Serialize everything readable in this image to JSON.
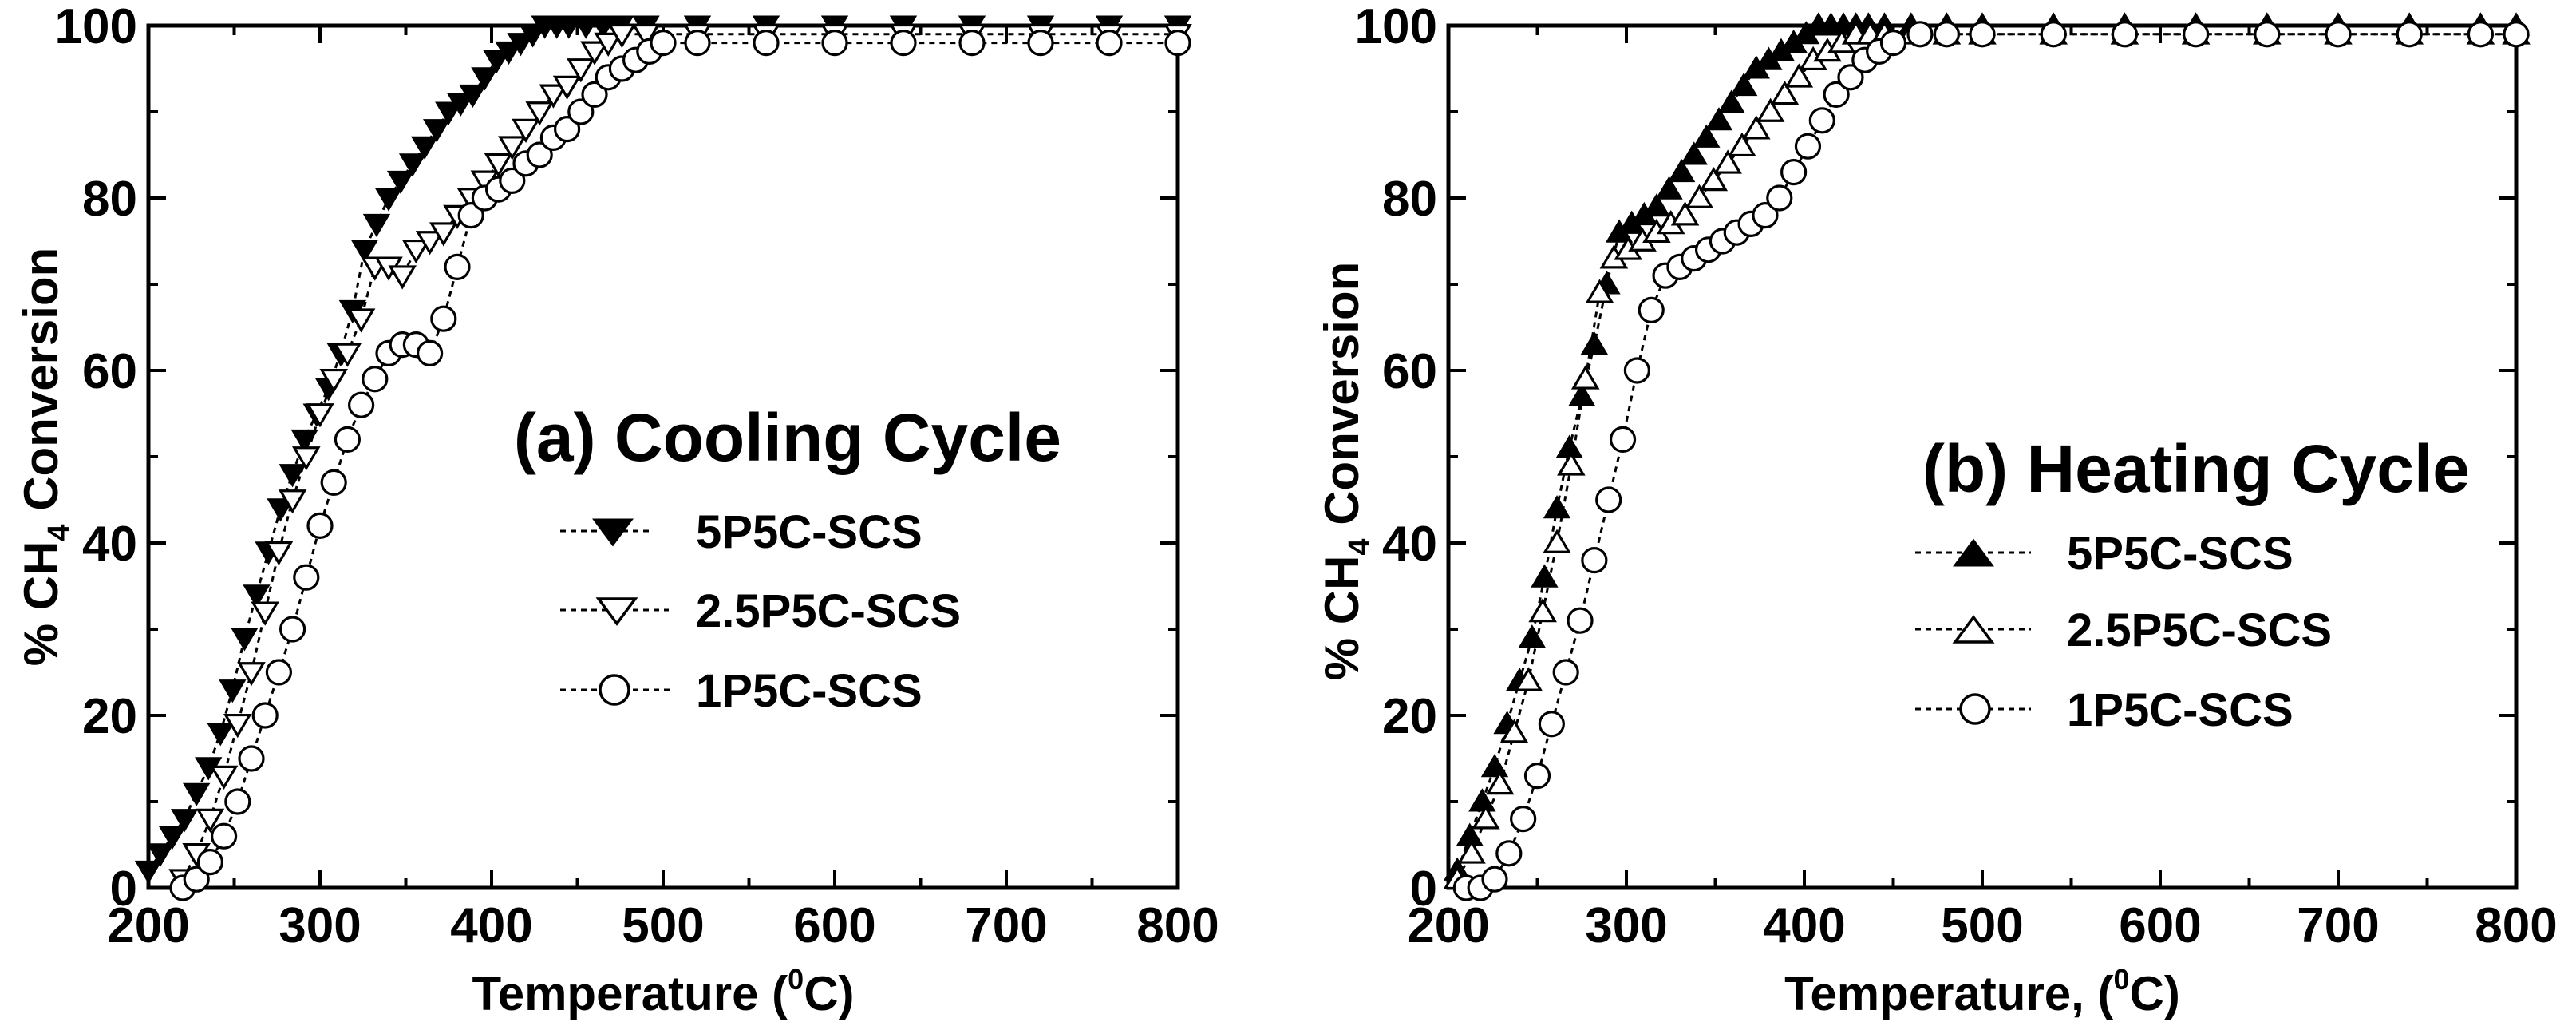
{
  "chart_data": [
    {
      "type": "scatter",
      "title": "",
      "annotation": "(a) Cooling Cycle",
      "xlabel": "Temperature (",
      "xlabel_sup": "0",
      "xlabel_end": "C)",
      "ylabel_prefix": "% CH",
      "ylabel_sub": "4",
      "ylabel_suffix": " Conversion",
      "xlim": [
        200,
        800
      ],
      "ylim": [
        0,
        100
      ],
      "xticks": [
        200,
        300,
        400,
        500,
        600,
        700,
        800
      ],
      "yticks": [
        0,
        20,
        40,
        60,
        80,
        100
      ],
      "legend_position": "center-right",
      "series": [
        {
          "name": "5P5C-SCS",
          "marker": "triangle-down-filled",
          "x": [
            200,
            207,
            214,
            221,
            228,
            235,
            242,
            249,
            256,
            263,
            270,
            277,
            284,
            291,
            298,
            305,
            312,
            319,
            326,
            333,
            340,
            347,
            354,
            361,
            368,
            375,
            382,
            389,
            396,
            403,
            410,
            417,
            424,
            431,
            438,
            445,
            455,
            465,
            475,
            490,
            520,
            560,
            600,
            640,
            680,
            720,
            760,
            800
          ],
          "y": [
            2,
            4,
            6,
            8,
            11,
            14,
            18,
            23,
            29,
            34,
            39,
            44,
            48,
            52,
            55,
            58,
            62,
            67,
            74,
            77,
            80,
            82,
            84,
            86,
            88,
            90,
            91,
            92,
            94,
            96,
            97,
            98,
            99,
            100,
            100,
            100,
            100,
            100,
            100,
            100,
            100,
            100,
            100,
            100,
            100,
            100,
            100,
            100
          ]
        },
        {
          "name": "2.5P5C-SCS",
          "marker": "triangle-down-open",
          "x": [
            220,
            228,
            236,
            244,
            252,
            260,
            268,
            276,
            284,
            292,
            300,
            308,
            316,
            324,
            332,
            340,
            348,
            356,
            364,
            372,
            380,
            388,
            396,
            404,
            412,
            420,
            428,
            436,
            444,
            452,
            460,
            468,
            476,
            490,
            520,
            560,
            600,
            640,
            680,
            720,
            760,
            800
          ],
          "y": [
            1,
            4,
            8,
            13,
            19,
            25,
            32,
            39,
            45,
            50,
            55,
            59,
            62,
            66,
            72,
            72,
            71,
            74,
            75,
            76,
            78,
            80,
            82,
            84,
            86,
            88,
            90,
            92,
            93,
            95,
            97,
            98,
            99,
            99,
            99,
            99,
            99,
            99,
            99,
            99,
            99,
            99
          ]
        },
        {
          "name": "1P5C-SCS",
          "marker": "circle-open",
          "x": [
            220,
            228,
            236,
            244,
            252,
            260,
            268,
            276,
            284,
            292,
            300,
            308,
            316,
            324,
            332,
            340,
            348,
            356,
            364,
            372,
            380,
            388,
            396,
            404,
            412,
            420,
            428,
            436,
            444,
            452,
            460,
            468,
            476,
            484,
            492,
            500,
            520,
            560,
            600,
            640,
            680,
            720,
            760,
            800
          ],
          "y": [
            0,
            1,
            3,
            6,
            10,
            15,
            20,
            25,
            30,
            36,
            42,
            47,
            52,
            56,
            59,
            62,
            63,
            63,
            62,
            66,
            72,
            78,
            80,
            81,
            82,
            84,
            85,
            87,
            88,
            90,
            92,
            94,
            95,
            96,
            97,
            98,
            98,
            98,
            98,
            98,
            98,
            98,
            98,
            98
          ]
        }
      ]
    },
    {
      "type": "scatter",
      "title": "",
      "annotation": "(b) Heating  Cycle",
      "xlabel": "Temperature, (",
      "xlabel_sup": "0",
      "xlabel_end": "C)",
      "ylabel_prefix": "% CH",
      "ylabel_sub": "4",
      "ylabel_suffix": " Conversion",
      "xlim": [
        200,
        800
      ],
      "ylim": [
        0,
        100
      ],
      "xticks": [
        200,
        300,
        400,
        500,
        600,
        700,
        800
      ],
      "yticks": [
        0,
        20,
        40,
        60,
        80,
        100
      ],
      "legend_position": "center-right",
      "series": [
        {
          "name": "5P5C-SCS",
          "marker": "triangle-up-filled",
          "x": [
            205,
            212,
            219,
            226,
            233,
            240,
            247,
            254,
            261,
            268,
            275,
            282,
            289,
            296,
            303,
            310,
            317,
            324,
            331,
            338,
            345,
            352,
            359,
            366,
            373,
            380,
            387,
            394,
            401,
            408,
            415,
            422,
            429,
            436,
            445,
            460,
            480,
            500,
            540,
            580,
            620,
            660,
            700,
            740,
            780,
            800
          ],
          "y": [
            2,
            6,
            10,
            14,
            19,
            24,
            29,
            36,
            44,
            51,
            57,
            63,
            70,
            76,
            77,
            78,
            79,
            81,
            83,
            85,
            87,
            89,
            91,
            93,
            95,
            96,
            97,
            98,
            99,
            100,
            100,
            100,
            100,
            100,
            100,
            100,
            100,
            100,
            100,
            100,
            100,
            100,
            100,
            100,
            100,
            100
          ]
        },
        {
          "name": "2.5P5C-SCS",
          "marker": "triangle-up-open",
          "x": [
            205,
            213,
            221,
            229,
            237,
            245,
            253,
            261,
            269,
            277,
            285,
            293,
            301,
            309,
            317,
            325,
            333,
            341,
            349,
            357,
            365,
            373,
            381,
            389,
            397,
            405,
            413,
            421,
            429,
            437,
            445,
            460,
            480,
            500,
            540,
            580,
            620,
            660,
            700,
            740,
            780,
            800
          ],
          "y": [
            1,
            4,
            8,
            12,
            18,
            24,
            32,
            40,
            49,
            59,
            69,
            73,
            74,
            75,
            76,
            77,
            78,
            80,
            82,
            84,
            86,
            88,
            90,
            92,
            94,
            96,
            97,
            98,
            99,
            99,
            99,
            99,
            99,
            99,
            99,
            99,
            99,
            99,
            99,
            99,
            99,
            99
          ]
        },
        {
          "name": "1P5C-SCS",
          "marker": "circle-open",
          "x": [
            210,
            218,
            226,
            234,
            242,
            250,
            258,
            266,
            274,
            282,
            290,
            298,
            306,
            314,
            322,
            330,
            338,
            346,
            354,
            362,
            370,
            378,
            386,
            394,
            402,
            410,
            418,
            426,
            434,
            442,
            450,
            465,
            480,
            500,
            540,
            580,
            620,
            660,
            700,
            740,
            780,
            800
          ],
          "y": [
            0,
            0,
            1,
            4,
            8,
            13,
            19,
            25,
            31,
            38,
            45,
            52,
            60,
            67,
            71,
            72,
            73,
            74,
            75,
            76,
            77,
            78,
            80,
            83,
            86,
            89,
            92,
            94,
            96,
            97,
            98,
            99,
            99,
            99,
            99,
            99,
            99,
            99,
            99,
            99,
            99,
            99
          ]
        }
      ]
    }
  ]
}
